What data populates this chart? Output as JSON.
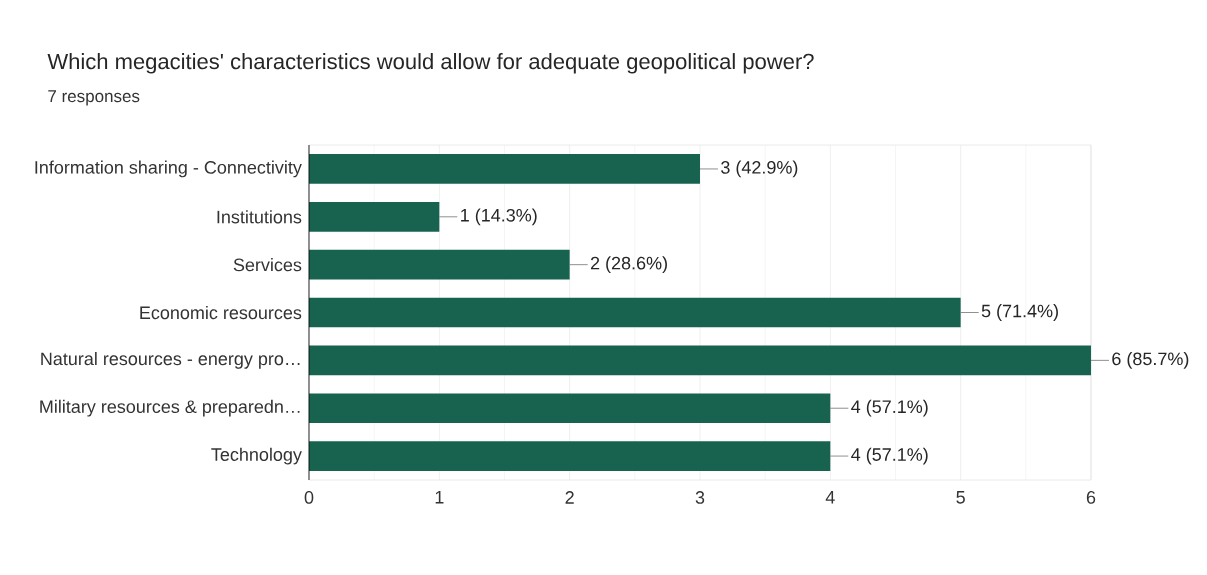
{
  "chart_data": {
    "type": "bar",
    "orientation": "horizontal",
    "title": "Which megacities' characteristics would allow for adequate geopolitical power?",
    "subtitle": "7 responses",
    "categories": [
      "Information sharing - Connectivity",
      "Institutions",
      "Services",
      "Economic resources",
      "Natural resources - energy pro…",
      "Military resources & preparedn…",
      "Technology"
    ],
    "values": [
      3,
      1,
      2,
      5,
      6,
      4,
      4
    ],
    "value_labels": [
      "3 (42.9%)",
      "1 (14.3%)",
      "2 (28.6%)",
      "5 (71.4%)",
      "6 (85.7%)",
      "4 (57.1%)",
      "4 (57.1%)"
    ],
    "color": "#17634f",
    "xlim": [
      0,
      6
    ],
    "xticks": [
      0,
      1,
      2,
      3,
      4,
      5,
      6
    ],
    "grid": "x"
  }
}
